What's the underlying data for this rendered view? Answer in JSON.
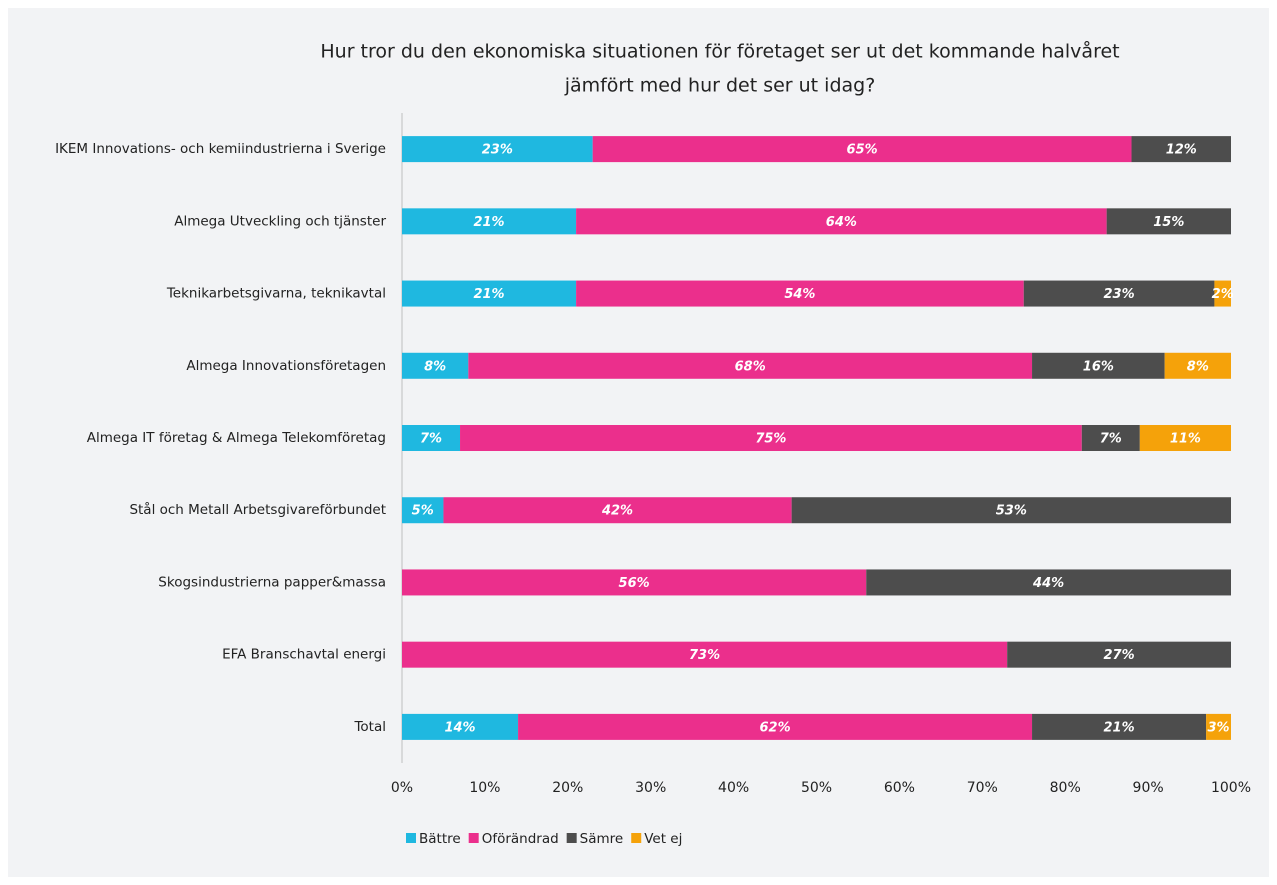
{
  "chart_data": {
    "type": "stacked_bar_horizontal",
    "title": [
      "Hur tror du den ekonomiska situationen för företaget ser ut det kommande halvåret",
      "jämfört med hur det ser ut idag?"
    ],
    "categories": [
      "IKEM Innovations- och kemiindustrierna i Sverige",
      "Almega Utveckling och tjänster",
      "Teknikarbetsgivarna, teknikavtal",
      "Almega Innovationsföretagen",
      "Almega IT företag & Almega Telekomföretag",
      "Stål och Metall Arbetsgivareförbundet",
      "Skogsindustrierna papper&massa",
      "EFA Branschavtal energi",
      "Total"
    ],
    "series": [
      {
        "name": "Bättre",
        "color": "#1fb8e0",
        "values": [
          23,
          21,
          21,
          8,
          7,
          5,
          null,
          null,
          14
        ],
        "value_labels": [
          "23%",
          "21%",
          "21%",
          "8%",
          "7%",
          "5%",
          null,
          null,
          "14%"
        ]
      },
      {
        "name": "Oförändrad",
        "color": "#eb2f8c",
        "values": [
          65,
          64,
          54,
          68,
          75,
          42,
          56,
          73,
          62
        ],
        "value_labels": [
          "65%",
          "64%",
          "54%",
          "68%",
          "75%",
          "42%",
          "56%",
          "73%",
          "62%"
        ]
      },
      {
        "name": "Sämre",
        "color": "#4d4d4d",
        "values": [
          12,
          15,
          23,
          16,
          7,
          53,
          44,
          27,
          21
        ],
        "value_labels": [
          "12%",
          "15%",
          "23%",
          "16%",
          "7%",
          "53%",
          "44%",
          "27%",
          "21%"
        ]
      },
      {
        "name": "Vet ej",
        "color": "#f5a20a",
        "values": [
          null,
          null,
          2,
          8,
          11,
          null,
          null,
          null,
          3
        ],
        "value_labels": [
          null,
          null,
          "2%",
          "8%",
          "11%",
          null,
          null,
          null,
          "3%"
        ]
      }
    ],
    "xlim": [
      0,
      100
    ],
    "xticks": [
      {
        "value": 0,
        "label": "0%"
      },
      {
        "value": 10,
        "label": "10%"
      },
      {
        "value": 20,
        "label": "20%"
      },
      {
        "value": 30,
        "label": "30%"
      },
      {
        "value": 40,
        "label": "40%"
      },
      {
        "value": 50,
        "label": "50%"
      },
      {
        "value": 60,
        "label": "60%"
      },
      {
        "value": 70,
        "label": "70%"
      },
      {
        "value": 80,
        "label": "80%"
      },
      {
        "value": 90,
        "label": "90%"
      },
      {
        "value": 100,
        "label": "100%"
      }
    ],
    "legend": "bottom"
  }
}
